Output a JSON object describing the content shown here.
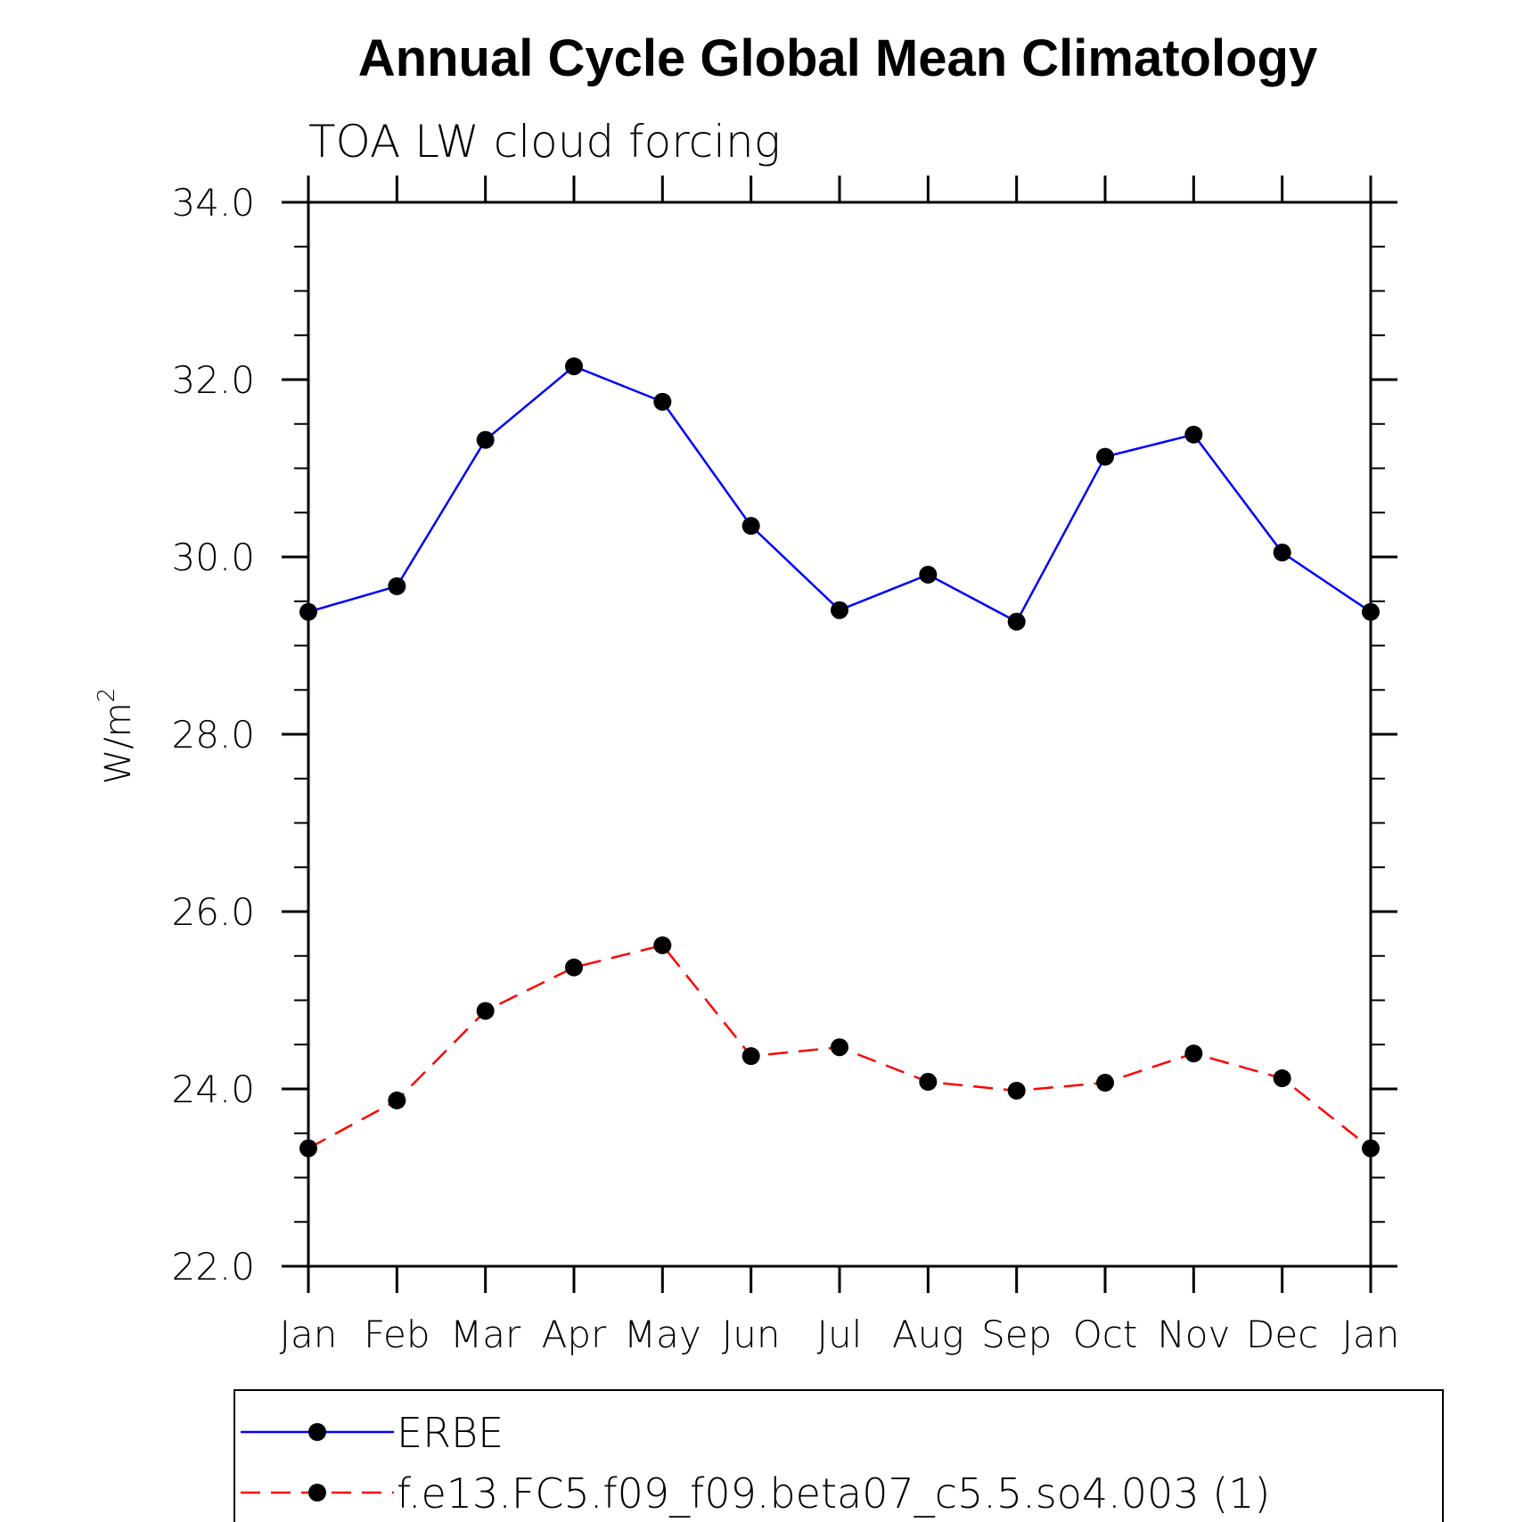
{
  "chart_data": {
    "type": "line",
    "title": "Annual Cycle Global Mean Climatology",
    "subtitle": "TOA LW cloud forcing",
    "ylabel_base": "W/m",
    "ylabel_sup": "2",
    "categories": [
      "Jan",
      "Feb",
      "Mar",
      "Apr",
      "May",
      "Jun",
      "Jul",
      "Aug",
      "Sep",
      "Oct",
      "Nov",
      "Dec",
      "Jan"
    ],
    "ylim": [
      22.0,
      34.0
    ],
    "yticks": [
      "22.0",
      "24.0",
      "26.0",
      "28.0",
      "30.0",
      "32.0",
      "34.0"
    ],
    "yminor_step": 0.5,
    "grid": false,
    "legend_position": "bottom",
    "series": [
      {
        "name": "ERBE",
        "color": "#0000ff",
        "dash": "solid",
        "marker": "filled-circle",
        "values": [
          29.38,
          29.67,
          31.32,
          32.15,
          31.75,
          30.35,
          29.4,
          29.8,
          29.27,
          31.13,
          31.38,
          30.05,
          29.38
        ]
      },
      {
        "name": "f.e13.FC5.f09_f09.beta07_c5.5.so4.003 (1)",
        "color": "#ff0000",
        "dash": "dashed",
        "marker": "filled-circle",
        "values": [
          23.33,
          23.87,
          24.88,
          25.37,
          25.62,
          24.37,
          24.47,
          24.08,
          23.98,
          24.07,
          24.4,
          24.12,
          23.33
        ]
      }
    ]
  }
}
